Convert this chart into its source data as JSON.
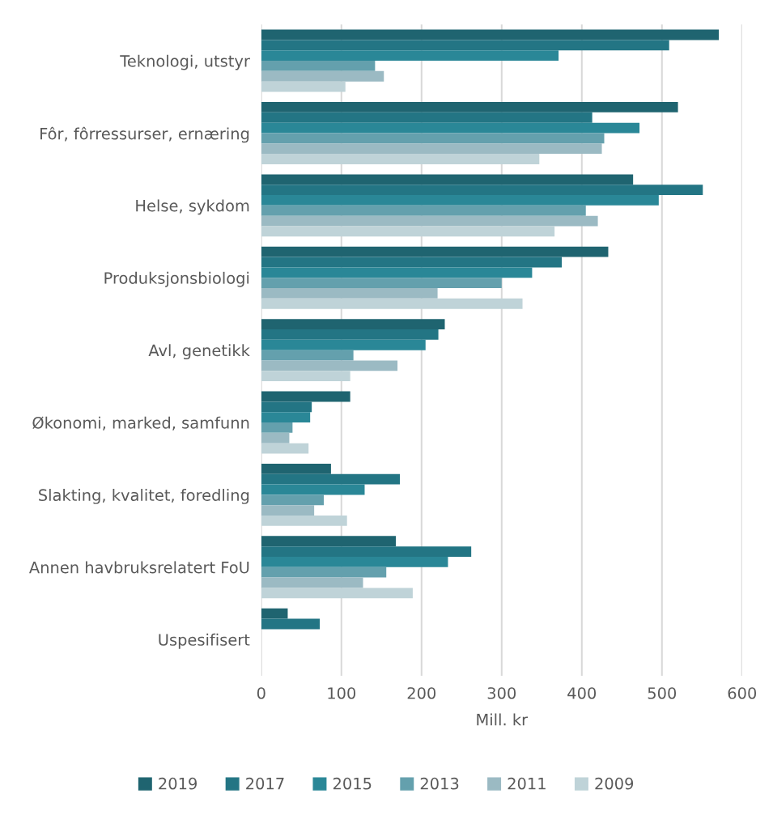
{
  "chart_data": {
    "type": "bar",
    "orientation": "horizontal",
    "xlabel": "Mill. kr",
    "categories": [
      "Teknologi, utstyr",
      "Fôr, fôrressurser, ernæring",
      "Helse, sykdom",
      "Produksjonsbiologi",
      "Avl, genetikk",
      "Økonomi, marked, samfunn",
      "Slakting, kvalitet, foredling",
      "Annen havbruksrelatert FoU",
      "Uspesifisert"
    ],
    "series": [
      {
        "name": "2019",
        "color": "#1f6470",
        "values": [
          571,
          520,
          464,
          433,
          229,
          111,
          87,
          168,
          33
        ]
      },
      {
        "name": "2017",
        "color": "#237584",
        "values": [
          509,
          413,
          551,
          375,
          221,
          63,
          173,
          262,
          73
        ]
      },
      {
        "name": "2015",
        "color": "#2a8797",
        "values": [
          371,
          472,
          496,
          338,
          205,
          61,
          129,
          233,
          null
        ]
      },
      {
        "name": "2013",
        "color": "#64a0ad",
        "values": [
          142,
          428,
          405,
          300,
          115,
          39,
          78,
          156,
          null
        ]
      },
      {
        "name": "2011",
        "color": "#9bbac3",
        "values": [
          153,
          425,
          420,
          220,
          170,
          35,
          66,
          127,
          null
        ]
      },
      {
        "name": "2009",
        "color": "#bfd3d8",
        "values": [
          105,
          347,
          366,
          326,
          111,
          59,
          107,
          189,
          null
        ]
      }
    ],
    "xlim": [
      0,
      600
    ],
    "xticks": [
      0,
      100,
      200,
      300,
      400,
      500,
      600
    ],
    "grid": "x",
    "legend": "bottom"
  }
}
